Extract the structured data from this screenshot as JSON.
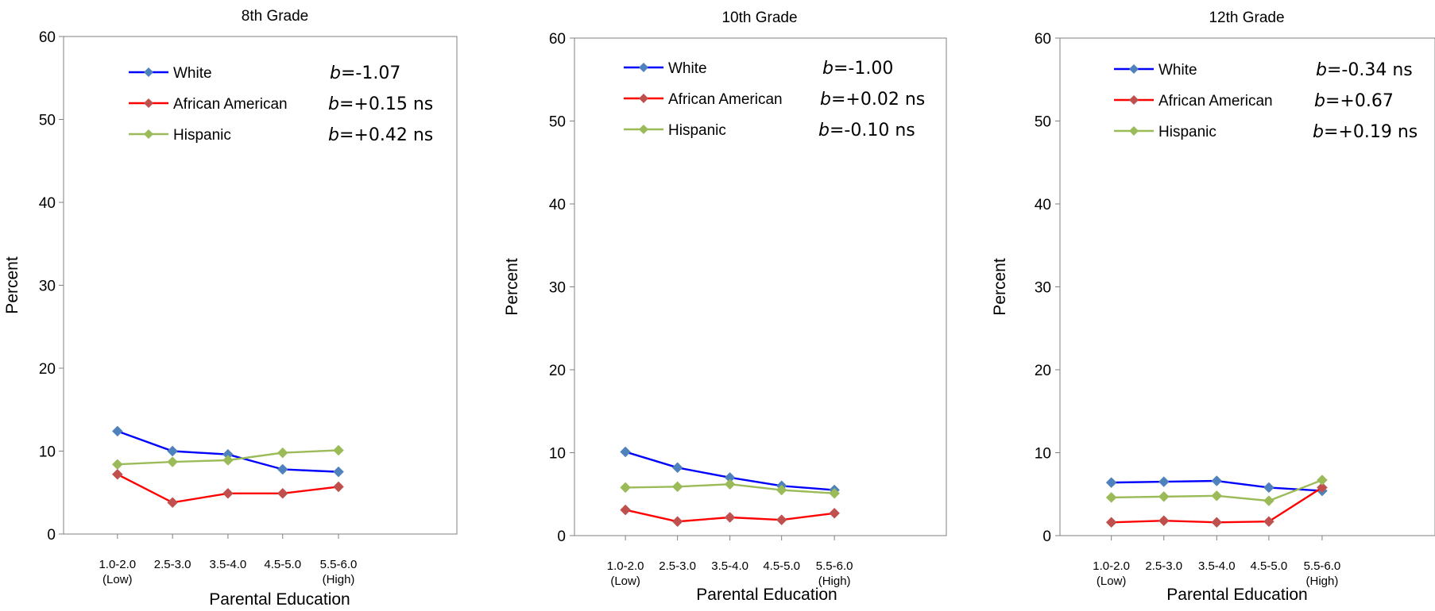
{
  "chart_data": [
    {
      "type": "line",
      "title": "8th Grade",
      "xlabel": "Parental Education",
      "ylabel": "Percent",
      "ylim": [
        0,
        60
      ],
      "yticks": [
        "0",
        "10",
        "20",
        "30",
        "40",
        "50",
        "60"
      ],
      "categories": [
        [
          "1.0-2.0",
          "(Low)"
        ],
        [
          "2.5-3.0"
        ],
        [
          "3.5-4.0"
        ],
        [
          "4.5-5.0"
        ],
        [
          "5.5-6.0",
          "(High)"
        ]
      ],
      "series": [
        {
          "name": "White",
          "color": "#0000ff",
          "marker": "#4f81bd",
          "values": [
            12.4,
            10.0,
            9.6,
            7.8,
            7.5
          ],
          "stat_b": "b",
          "stat_rest": "=-1.07"
        },
        {
          "name": "African American",
          "color": "#ff0000",
          "marker": "#c0504d",
          "values": [
            7.2,
            3.8,
            4.9,
            4.9,
            5.7
          ],
          "stat_b": "b",
          "stat_rest": "=+0.15 ns"
        },
        {
          "name": "Hispanic",
          "color": "#9bbb59",
          "marker": "#9bbb59",
          "values": [
            8.4,
            8.7,
            8.9,
            9.8,
            10.1
          ],
          "stat_b": "b",
          "stat_rest": "=+0.42 ns"
        }
      ],
      "grid": false,
      "legend": "top-left"
    },
    {
      "type": "line",
      "title": "10th Grade",
      "xlabel": "Parental Education",
      "ylabel": "Percent",
      "ylim": [
        0,
        60
      ],
      "yticks": [
        "0",
        "10",
        "20",
        "30",
        "40",
        "50",
        "60"
      ],
      "categories": [
        [
          "1.0-2.0",
          "(Low)"
        ],
        [
          "2.5-3.0"
        ],
        [
          "3.5-4.0"
        ],
        [
          "4.5-5.0"
        ],
        [
          "5.5-6.0",
          "(High)"
        ]
      ],
      "series": [
        {
          "name": "White",
          "color": "#0000ff",
          "marker": "#4f81bd",
          "values": [
            10.1,
            8.2,
            7.0,
            6.0,
            5.5
          ],
          "stat_b": "b",
          "stat_rest": "=-1.00"
        },
        {
          "name": "African American",
          "color": "#ff0000",
          "marker": "#c0504d",
          "values": [
            3.1,
            1.7,
            2.2,
            1.9,
            2.7
          ],
          "stat_b": "b",
          "stat_rest": "=+0.02 ns"
        },
        {
          "name": "Hispanic",
          "color": "#9bbb59",
          "marker": "#9bbb59",
          "values": [
            5.8,
            5.9,
            6.2,
            5.5,
            5.1
          ],
          "stat_b": "b",
          "stat_rest": "=-0.10 ns"
        }
      ],
      "grid": false,
      "legend": "top-left"
    },
    {
      "type": "line",
      "title": "12th Grade",
      "xlabel": "Parental Education",
      "ylabel": "Percent",
      "ylim": [
        0,
        60
      ],
      "yticks": [
        "0",
        "10",
        "20",
        "30",
        "40",
        "50",
        "60"
      ],
      "categories": [
        [
          "1.0-2.0",
          "(Low)"
        ],
        [
          "2.5-3.0"
        ],
        [
          "3.5-4.0"
        ],
        [
          "4.5-5.0"
        ],
        [
          "5.5-6.0",
          "(High)"
        ]
      ],
      "series": [
        {
          "name": "White",
          "color": "#0000ff",
          "marker": "#4f81bd",
          "values": [
            6.4,
            6.5,
            6.6,
            5.8,
            5.4
          ],
          "stat_b": "b",
          "stat_rest": "=-0.34 ns"
        },
        {
          "name": "African American",
          "color": "#ff0000",
          "marker": "#c0504d",
          "values": [
            1.6,
            1.8,
            1.6,
            1.7,
            5.8
          ],
          "stat_b": "b",
          "stat_rest": "=+0.67"
        },
        {
          "name": "Hispanic",
          "color": "#9bbb59",
          "marker": "#9bbb59",
          "values": [
            4.6,
            4.7,
            4.8,
            4.2,
            6.7
          ],
          "stat_b": "b",
          "stat_rest": "=+0.19 ns"
        }
      ],
      "grid": false,
      "legend": "top-left"
    }
  ]
}
